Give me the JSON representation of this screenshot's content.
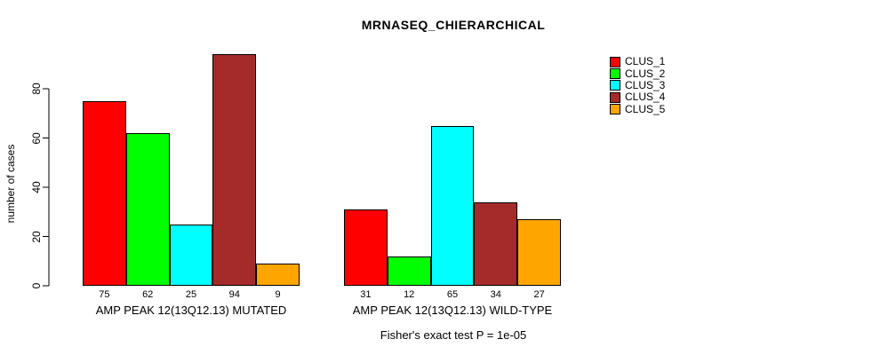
{
  "title": "MRNASEQ_CHIERARCHICAL",
  "caption": "Fisher's exact test P = 1e-05",
  "y_axis": {
    "label": "number of cases",
    "ticks": [
      0,
      20,
      40,
      60,
      80
    ]
  },
  "legend": {
    "items": [
      {
        "label": "CLUS_1",
        "color": "#FF0000"
      },
      {
        "label": "CLUS_2",
        "color": "#00FF00"
      },
      {
        "label": "CLUS_3",
        "color": "#00FFFF"
      },
      {
        "label": "CLUS_4",
        "color": "#A52A2A"
      },
      {
        "label": "CLUS_5",
        "color": "#FFA500"
      }
    ]
  },
  "chart_data": {
    "type": "bar",
    "title": "MRNASEQ_CHIERARCHICAL",
    "xlabel": "",
    "ylabel": "number of cases",
    "ylim": [
      0,
      94
    ],
    "yticks": [
      0,
      20,
      40,
      60,
      80
    ],
    "grid": false,
    "legend_position": "right",
    "series_names": [
      "CLUS_1",
      "CLUS_2",
      "CLUS_3",
      "CLUS_4",
      "CLUS_5"
    ],
    "series_colors": [
      "#FF0000",
      "#00FF00",
      "#00FFFF",
      "#A52A2A",
      "#FFA500"
    ],
    "groups": [
      {
        "label": "AMP PEAK 12(13Q12.13) MUTATED",
        "values": [
          75,
          62,
          25,
          94,
          9
        ]
      },
      {
        "label": "AMP PEAK 12(13Q12.13) WILD-TYPE",
        "values": [
          31,
          12,
          65,
          34,
          27
        ]
      }
    ],
    "annotation": "Fisher's exact test P = 1e-05"
  }
}
